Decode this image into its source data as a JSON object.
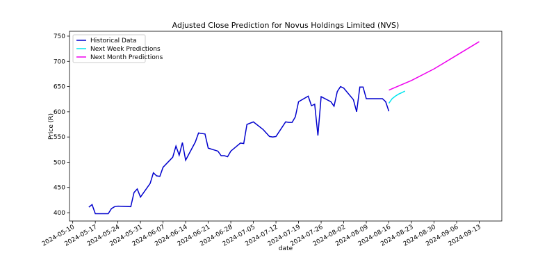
{
  "chart_data": {
    "type": "line",
    "title": "Adjusted Close Prediction for Novus Holdings Limited (NVS)",
    "xlabel": "date",
    "ylabel": "Price (R)",
    "xlim": [
      "2024-05-09",
      "2024-09-20"
    ],
    "ylim": [
      383.5,
      759.6
    ],
    "xticks": [
      "2024-05-10",
      "2024-05-17",
      "2024-05-24",
      "2024-05-31",
      "2024-06-07",
      "2024-06-14",
      "2024-06-21",
      "2024-06-28",
      "2024-07-05",
      "2024-07-12",
      "2024-07-19",
      "2024-07-26",
      "2024-08-02",
      "2024-08-09",
      "2024-08-16",
      "2024-08-23",
      "2024-08-30",
      "2024-09-06",
      "2024-09-13"
    ],
    "yticks": [
      400,
      450,
      500,
      550,
      600,
      650,
      700,
      750
    ],
    "legend": "upper left",
    "series": [
      {
        "name": "Historical Data",
        "color": "#0000cd",
        "x": [
          "2024-05-15",
          "2024-05-16",
          "2024-05-17",
          "2024-05-20",
          "2024-05-21",
          "2024-05-22",
          "2024-05-23",
          "2024-05-24",
          "2024-05-28",
          "2024-05-29",
          "2024-05-30",
          "2024-05-31",
          "2024-06-03",
          "2024-06-04",
          "2024-06-05",
          "2024-06-06",
          "2024-06-07",
          "2024-06-10",
          "2024-06-11",
          "2024-06-12",
          "2024-06-13",
          "2024-06-14",
          "2024-06-17",
          "2024-06-18",
          "2024-06-20",
          "2024-06-21",
          "2024-06-24",
          "2024-06-25",
          "2024-06-26",
          "2024-06-27",
          "2024-06-28",
          "2024-07-01",
          "2024-07-02",
          "2024-07-03",
          "2024-07-05",
          "2024-07-08",
          "2024-07-09",
          "2024-07-10",
          "2024-07-11",
          "2024-07-12",
          "2024-07-15",
          "2024-07-16",
          "2024-07-17",
          "2024-07-18",
          "2024-07-19",
          "2024-07-22",
          "2024-07-23",
          "2024-07-24",
          "2024-07-25",
          "2024-07-26",
          "2024-07-29",
          "2024-07-30",
          "2024-07-31",
          "2024-08-01",
          "2024-08-02",
          "2024-08-05",
          "2024-08-06",
          "2024-08-07",
          "2024-08-08",
          "2024-08-09",
          "2024-08-12",
          "2024-08-13",
          "2024-08-14",
          "2024-08-15",
          "2024-08-16"
        ],
        "values": [
          411,
          416,
          398,
          398,
          398,
          408,
          412,
          413,
          412,
          440,
          447,
          431,
          458,
          479,
          473,
          472,
          490,
          510,
          532,
          514,
          539,
          504,
          540,
          558,
          556,
          528,
          522,
          513,
          513,
          511,
          522,
          538,
          537,
          575,
          580,
          565,
          558,
          551,
          550,
          551,
          580,
          579,
          579,
          590,
          620,
          631,
          612,
          615,
          553,
          630,
          620,
          611,
          640,
          650,
          647,
          624,
          600,
          649,
          649,
          626,
          626,
          626,
          626,
          620,
          601
        ]
      },
      {
        "name": "Next Week Predictions",
        "color": "#00e5ee",
        "x": [
          "2024-08-16",
          "2024-08-17",
          "2024-08-18",
          "2024-08-19",
          "2024-08-20",
          "2024-08-21"
        ],
        "values": [
          617,
          626,
          631,
          635,
          638,
          641
        ]
      },
      {
        "name": "Next Month Predictions",
        "color": "#ee00ee",
        "x": [
          "2024-08-16",
          "2024-08-23",
          "2024-08-30",
          "2024-09-06",
          "2024-09-13"
        ],
        "values": [
          643,
          662,
          685,
          712,
          739
        ]
      }
    ]
  }
}
